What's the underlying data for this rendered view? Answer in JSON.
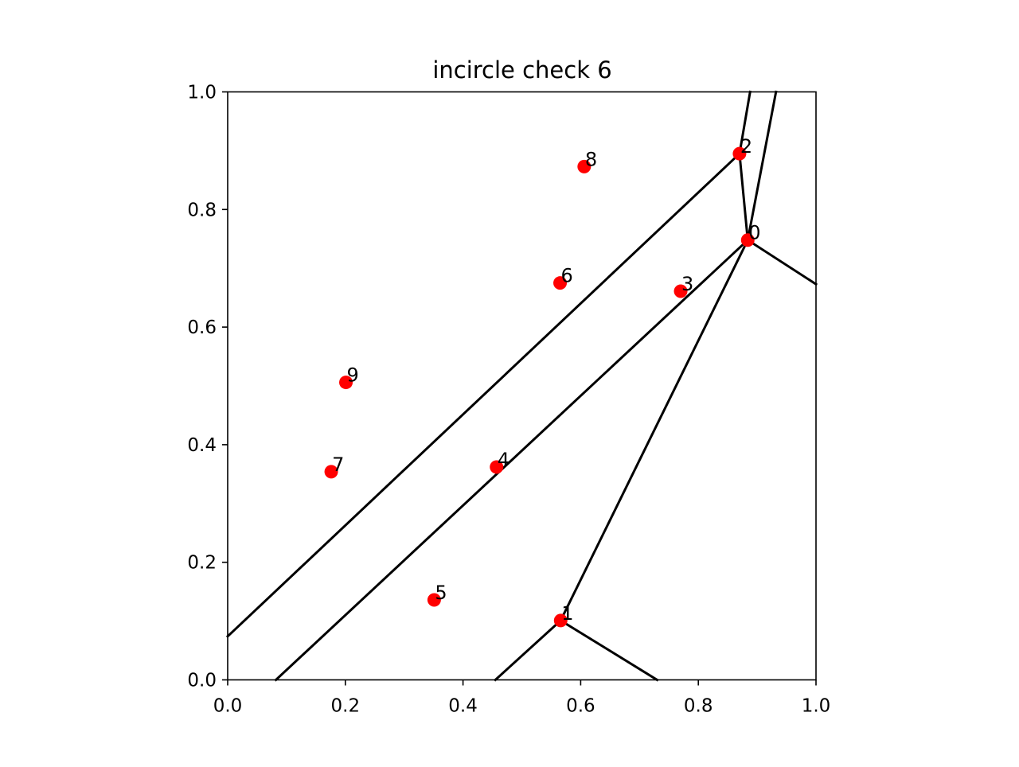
{
  "chart_data": {
    "type": "scatter",
    "title": "incircle check 6",
    "xlabel": "",
    "ylabel": "",
    "xlim": [
      0.0,
      1.0
    ],
    "ylim": [
      0.0,
      1.0
    ],
    "x_ticks": [
      0.0,
      0.2,
      0.4,
      0.6,
      0.8,
      1.0
    ],
    "x_tick_labels": [
      "0.0",
      "0.2",
      "0.4",
      "0.6",
      "0.8",
      "1.0"
    ],
    "y_ticks": [
      0.0,
      0.2,
      0.4,
      0.6,
      0.8,
      1.0
    ],
    "y_tick_labels": [
      "0.0",
      "0.2",
      "0.4",
      "0.6",
      "0.8",
      "1.0"
    ],
    "grid": false,
    "point_color": "#ff0000",
    "line_color": "#000000",
    "points": [
      {
        "label": "0",
        "x": 0.884,
        "y": 0.748
      },
      {
        "label": "1",
        "x": 0.566,
        "y": 0.101
      },
      {
        "label": "2",
        "x": 0.87,
        "y": 0.895
      },
      {
        "label": "3",
        "x": 0.77,
        "y": 0.661
      },
      {
        "label": "4",
        "x": 0.457,
        "y": 0.362
      },
      {
        "label": "5",
        "x": 0.351,
        "y": 0.136
      },
      {
        "label": "6",
        "x": 0.565,
        "y": 0.675
      },
      {
        "label": "7",
        "x": 0.176,
        "y": 0.354
      },
      {
        "label": "8",
        "x": 0.606,
        "y": 0.873
      },
      {
        "label": "9",
        "x": 0.201,
        "y": 0.506
      }
    ],
    "lines": [
      {
        "name": "edge-2-left",
        "x": [
          0.0,
          0.87
        ],
        "y": [
          0.074,
          0.895
        ]
      },
      {
        "name": "edge-2-top",
        "x": [
          0.87,
          0.888
        ],
        "y": [
          0.895,
          1.0
        ]
      },
      {
        "name": "edge-2-0",
        "x": [
          0.87,
          0.884
        ],
        "y": [
          0.895,
          0.748
        ]
      },
      {
        "name": "edge-0-top",
        "x": [
          0.884,
          0.932
        ],
        "y": [
          0.748,
          1.0
        ]
      },
      {
        "name": "edge-0-left",
        "x": [
          0.082,
          0.884
        ],
        "y": [
          0.0,
          0.748
        ]
      },
      {
        "name": "edge-0-right",
        "x": [
          0.884,
          1.0
        ],
        "y": [
          0.748,
          0.673
        ]
      },
      {
        "name": "edge-0-1",
        "x": [
          0.884,
          0.566
        ],
        "y": [
          0.748,
          0.101
        ]
      },
      {
        "name": "edge-1-left",
        "x": [
          0.566,
          0.455
        ],
        "y": [
          0.101,
          0.0
        ]
      },
      {
        "name": "edge-1-right",
        "x": [
          0.566,
          0.73
        ],
        "y": [
          0.101,
          0.0
        ]
      }
    ]
  }
}
